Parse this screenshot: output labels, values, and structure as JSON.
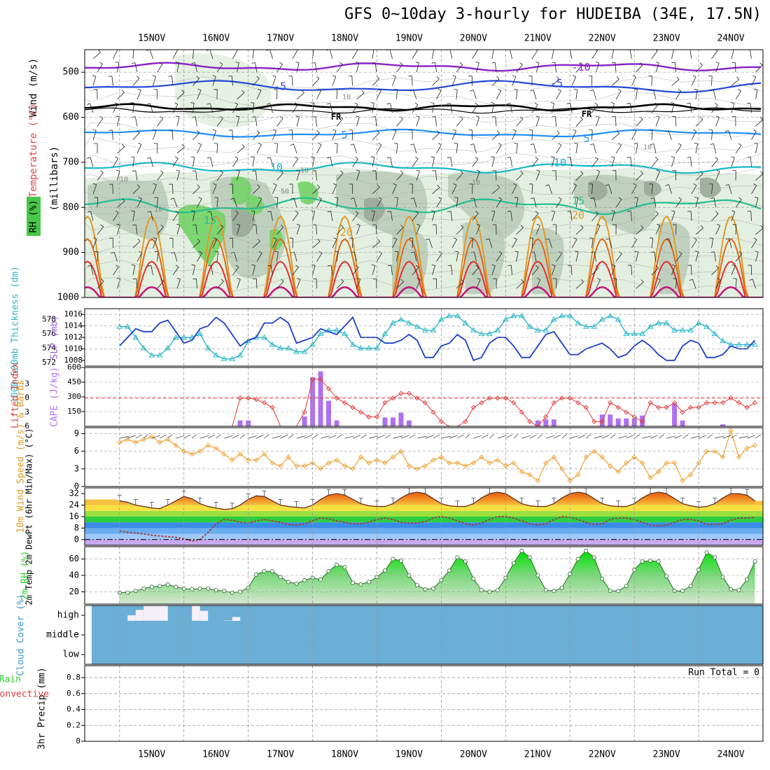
{
  "header": {
    "title": "GFS 0~10day 3-hourly for HUDEIBA (34E, 17.5N)"
  },
  "colors": {
    "rh_light": "#e3efe0",
    "rh_mid": "#b9cbb7",
    "rh_dark": "#9aaa98",
    "rh_green": "#76d46a",
    "iso_neg10": "#8a22c8",
    "iso_neg5": "#2448d8",
    "iso_fr": "#000000",
    "iso_5": "#1e90ff",
    "iso_10": "#18b8c8",
    "iso_15": "#22c090",
    "iso_20": "#e09a28",
    "iso_25": "#e06a1a",
    "iso_30": "#e03030",
    "iso_35": "#c81880",
    "slp": "#1a3ec8",
    "thickness": "#2ab8c8",
    "lifted": "#e03a3a",
    "cape": "#b070f0",
    "wind": "#f0a030",
    "temp_fill": "#e06a1a",
    "dewpt": "#a04040",
    "rh2m": "#2ecc2e",
    "cloud": "#6baed6",
    "cloud_gap": "#f5f0f8"
  },
  "chart_data": [
    {
      "type": "area",
      "name": "upper",
      "xlabel_ticks": [
        "15NOV",
        "16NOV",
        "17NOV",
        "18NOV",
        "19NOV",
        "20NOV",
        "21NOV",
        "22NOV",
        "23NOV",
        "24NOV"
      ],
      "ylabel": "Wind (m/s)",
      "ylabel2": "Temperature (°C)",
      "ylabel3": "RH (%)",
      "ylabel4": "(millibars)",
      "yticks": [
        500,
        600,
        700,
        800,
        900,
        1000
      ],
      "ylim": [
        1000,
        450
      ],
      "isotherm_labels": [
        "-10",
        "-5",
        "-5",
        "FR",
        "FR",
        "5",
        "5",
        "10",
        "10",
        "15",
        "15",
        "20",
        "20"
      ],
      "rh_labels": [
        "10",
        "10",
        "10",
        "10",
        "50",
        "10",
        "10"
      ]
    },
    {
      "type": "line",
      "name": "slp_thickness",
      "ylabel": "SLP (mb)",
      "ylabel2": "1000-500mb Thickness (dm)",
      "slp_ticks": [
        1008,
        1010,
        1012,
        1014,
        1016
      ],
      "thk_ticks": [
        572,
        574,
        576,
        578
      ],
      "x": [
        0,
        3,
        6,
        9,
        12,
        15,
        18,
        21,
        24,
        27,
        30,
        33,
        36,
        39,
        42,
        45,
        48,
        51,
        54,
        57,
        60,
        63,
        66,
        69,
        72,
        75,
        78,
        81,
        84,
        87,
        90,
        93,
        96,
        99,
        102,
        105,
        108,
        111,
        114,
        117,
        120,
        123,
        126,
        129,
        132,
        135,
        138,
        141,
        144,
        147,
        150,
        153,
        156,
        159,
        162,
        165,
        168,
        171,
        174,
        177,
        180,
        183,
        186,
        189,
        192,
        195,
        198,
        201,
        204,
        207,
        210,
        213,
        216,
        219,
        222,
        225,
        228,
        231,
        234,
        237
      ],
      "slp": [
        1010.5,
        1012.0,
        1013.5,
        1013.0,
        1013.0,
        1014.5,
        1015.0,
        1013.0,
        1011.0,
        1011.5,
        1013.5,
        1014.0,
        1015.5,
        1014.5,
        1012.5,
        1010.5,
        1011.5,
        1012.0,
        1014.5,
        1014.5,
        1015.5,
        1014.5,
        1011.0,
        1011.5,
        1012.0,
        1013.5,
        1013.0,
        1012.5,
        1014.0,
        1015.5,
        1012.0,
        1012.0,
        1012.0,
        1011.0,
        1011.0,
        1011.5,
        1012.5,
        1011.5,
        1008.5,
        1008.5,
        1010.5,
        1011.0,
        1012.5,
        1011.5,
        1008.0,
        1008.5,
        1011.0,
        1012.0,
        1012.0,
        1010.5,
        1008.5,
        1008.5,
        1010.5,
        1012.5,
        1013.0,
        1011.0,
        1009.0,
        1009.0,
        1010.0,
        1010.5,
        1011.0,
        1010.0,
        1008.5,
        1009.0,
        1010.5,
        1011.5,
        1010.5,
        1009.0,
        1008.0,
        1008.0,
        1010.5,
        1011.5,
        1011.0,
        1008.5,
        1008.5,
        1009.0,
        1010.5,
        1010.0,
        1010.0,
        1011.5
      ],
      "thickness": [
        577.0,
        577.0,
        575.5,
        574.0,
        573.0,
        573.0,
        574.0,
        575.5,
        575.5,
        575.5,
        576.0,
        574.0,
        573.0,
        572.5,
        572.5,
        573.0,
        575.0,
        575.5,
        575.5,
        574.5,
        574.0,
        574.0,
        573.5,
        573.5,
        574.5,
        576.0,
        576.5,
        576.5,
        576.0,
        574.5,
        574.0,
        574.0,
        574.0,
        576.0,
        577.5,
        578.0,
        577.5,
        577.0,
        576.5,
        576.5,
        578.0,
        578.5,
        578.5,
        577.5,
        576.5,
        576.0,
        576.0,
        576.5,
        578.0,
        578.5,
        578.5,
        577.0,
        576.5,
        576.5,
        578.0,
        578.5,
        578.5,
        577.5,
        577.0,
        577.0,
        578.0,
        578.5,
        578.0,
        576.0,
        576.0,
        576.0,
        577.0,
        577.5,
        577.5,
        576.5,
        576.5,
        576.5,
        577.5,
        577.0,
        576.0,
        575.0,
        574.5,
        574.5,
        574.5,
        574.5
      ]
    },
    {
      "type": "bar",
      "name": "cape_lifted",
      "ylabel": "Lifted Index",
      "ylabel2": "CAPE (J/kg)",
      "li_ticks": [
        "-3",
        "0",
        "3",
        "6"
      ],
      "cape_ticks": [
        150,
        300,
        450,
        600
      ],
      "x": [
        0,
        3,
        6,
        9,
        12,
        15,
        18,
        21,
        24,
        27,
        30,
        33,
        36,
        39,
        42,
        45,
        48,
        51,
        54,
        57,
        60,
        63,
        66,
        69,
        72,
        75,
        78,
        81,
        84,
        87,
        90,
        93,
        96,
        99,
        102,
        105,
        108,
        111,
        114,
        117,
        120,
        123,
        126,
        129,
        132,
        135,
        138,
        141,
        144,
        147,
        150,
        153,
        156,
        159,
        162,
        165,
        168,
        171,
        174,
        177,
        180,
        183,
        186,
        189,
        192,
        195,
        198,
        201,
        204,
        207,
        210,
        213,
        216,
        219,
        222,
        225,
        228,
        231,
        234,
        237
      ],
      "cape": [
        0,
        0,
        0,
        0,
        0,
        0,
        0,
        0,
        0,
        0,
        0,
        0,
        0,
        0,
        0,
        60,
        60,
        0,
        0,
        0,
        0,
        0,
        0,
        100,
        500,
        560,
        260,
        60,
        0,
        0,
        0,
        0,
        0,
        90,
        90,
        140,
        60,
        0,
        0,
        0,
        0,
        0,
        0,
        0,
        0,
        0,
        0,
        0,
        0,
        0,
        0,
        0,
        60,
        70,
        70,
        0,
        0,
        0,
        0,
        0,
        120,
        120,
        80,
        80,
        80,
        110,
        0,
        0,
        0,
        230,
        60,
        0,
        0,
        0,
        0,
        20,
        0,
        0,
        0,
        0
      ],
      "lifted": [
        6,
        6,
        6,
        6,
        6,
        6,
        6,
        6,
        6,
        6,
        6,
        6,
        6,
        6,
        6,
        0,
        0,
        0.3,
        1,
        2,
        6,
        6,
        6,
        3,
        -4,
        -4,
        -2,
        0,
        1,
        2,
        3,
        4,
        4,
        1,
        0,
        -1,
        -1,
        0,
        1,
        3,
        5,
        6,
        6,
        5,
        2,
        1,
        0,
        0,
        0,
        1,
        3,
        5,
        6,
        4,
        1,
        0,
        0,
        1,
        2,
        5,
        5,
        1,
        2,
        3,
        4,
        5,
        1,
        2,
        2,
        1,
        3,
        2,
        2,
        1,
        1,
        1,
        0,
        1,
        2,
        1
      ],
      "li_hline": 0
    },
    {
      "type": "line",
      "name": "wind10m",
      "ylabel": "10m Wind Speed (m/s) & Barbs",
      "yticks": [
        0,
        3,
        6,
        9
      ],
      "ylim": [
        0,
        10
      ],
      "x": [
        0,
        3,
        6,
        9,
        12,
        15,
        18,
        21,
        24,
        27,
        30,
        33,
        36,
        39,
        42,
        45,
        48,
        51,
        54,
        57,
        60,
        63,
        66,
        69,
        72,
        75,
        78,
        81,
        84,
        87,
        90,
        93,
        96,
        99,
        102,
        105,
        108,
        111,
        114,
        117,
        120,
        123,
        126,
        129,
        132,
        135,
        138,
        141,
        144,
        147,
        150,
        153,
        156,
        159,
        162,
        165,
        168,
        171,
        174,
        177,
        180,
        183,
        186,
        189,
        192,
        195,
        198,
        201,
        204,
        207,
        210,
        213,
        216,
        219,
        222,
        225,
        228,
        231,
        234,
        237
      ],
      "speed": [
        7.5,
        8,
        7.5,
        8,
        8.5,
        7.5,
        8,
        7,
        6,
        5.5,
        6,
        7,
        6.5,
        5.5,
        4.5,
        5.5,
        4.5,
        4.5,
        5.5,
        4,
        3.5,
        5,
        3.5,
        3.5,
        4,
        3,
        4,
        4.5,
        3.5,
        3,
        5,
        4,
        4.5,
        4,
        5,
        6,
        3.5,
        3,
        3.5,
        4.5,
        5,
        4,
        4,
        3.5,
        4,
        5,
        4,
        4.5,
        3.5,
        4,
        2.5,
        2,
        1,
        4,
        5,
        3,
        1,
        2,
        5,
        6,
        5,
        3.5,
        2.5,
        4,
        5,
        4,
        1.5,
        2.5,
        4,
        4,
        1,
        2,
        4,
        6,
        6,
        5,
        9.5,
        5,
        6.5,
        7
      ]
    },
    {
      "type": "area",
      "name": "temp2m",
      "ylabel": "2m Temp 2m DewPt (6hr Min/Max) (°C)",
      "yticks": [
        0,
        8,
        16,
        24,
        32
      ],
      "ylim": [
        -4,
        36
      ],
      "x": [
        0,
        3,
        6,
        9,
        12,
        15,
        18,
        21,
        24,
        27,
        30,
        33,
        36,
        39,
        42,
        45,
        48,
        51,
        54,
        57,
        60,
        63,
        66,
        69,
        72,
        75,
        78,
        81,
        84,
        87,
        90,
        93,
        96,
        99,
        102,
        105,
        108,
        111,
        114,
        117,
        120,
        123,
        126,
        129,
        132,
        135,
        138,
        141,
        144,
        147,
        150,
        153,
        156,
        159,
        162,
        165,
        168,
        171,
        174,
        177,
        180,
        183,
        186,
        189,
        192,
        195,
        198,
        201,
        204,
        207,
        210,
        213,
        216,
        219,
        222,
        225,
        228,
        231,
        234,
        237
      ],
      "temp": [
        27,
        26,
        24,
        23,
        22,
        21.5,
        24,
        27,
        30,
        28.5,
        25,
        23,
        22,
        21,
        21.5,
        24,
        28,
        30.5,
        30,
        27,
        24,
        23,
        22.5,
        22,
        24,
        28,
        31,
        32,
        31,
        28,
        25,
        23.5,
        23,
        23,
        25,
        29,
        32,
        33,
        32,
        28.5,
        25,
        23.5,
        23,
        23,
        25,
        29,
        32,
        33,
        32,
        28.5,
        25,
        23.5,
        23,
        23,
        25,
        29,
        32,
        33,
        32,
        28.5,
        25,
        23.5,
        23,
        23,
        25,
        29,
        32,
        33,
        32,
        28.5,
        25,
        23.5,
        22.5,
        23,
        25,
        29,
        32,
        32,
        31,
        27
      ],
      "dewpt": [
        6,
        5,
        4.5,
        4,
        3,
        2.5,
        2,
        1.5,
        0.5,
        -1,
        0,
        5,
        11,
        14,
        13.5,
        12,
        11.5,
        13,
        14,
        13,
        12,
        10.5,
        10,
        11,
        13,
        15,
        14.5,
        13,
        12,
        11,
        11,
        12,
        14,
        15,
        14,
        12,
        11.5,
        11.5,
        12.5,
        15,
        16,
        15,
        13,
        11,
        10,
        11.5,
        14,
        16,
        16,
        15,
        13,
        11,
        10,
        11,
        14,
        16,
        15.5,
        14,
        12,
        10.5,
        11,
        14,
        15,
        15,
        14,
        12,
        10,
        9.5,
        10,
        12,
        14,
        14,
        13,
        10.5,
        10.5,
        11,
        13.5,
        15,
        15,
        15.5
      ]
    },
    {
      "type": "area",
      "name": "rh2m",
      "ylabel": "2m RH (%)",
      "yticks": [
        20,
        40,
        60
      ],
      "ylim": [
        5,
        75
      ],
      "x": [
        0,
        3,
        6,
        9,
        12,
        15,
        18,
        21,
        24,
        27,
        30,
        33,
        36,
        39,
        42,
        45,
        48,
        51,
        54,
        57,
        60,
        63,
        66,
        69,
        72,
        75,
        78,
        81,
        84,
        87,
        90,
        93,
        96,
        99,
        102,
        105,
        108,
        111,
        114,
        117,
        120,
        123,
        126,
        129,
        132,
        135,
        138,
        141,
        144,
        147,
        150,
        153,
        156,
        159,
        162,
        165,
        168,
        171,
        174,
        177,
        180,
        183,
        186,
        189,
        192,
        195,
        198,
        201,
        204,
        207,
        210,
        213,
        216,
        219,
        222,
        225,
        228,
        231,
        234,
        237
      ],
      "rh": [
        19,
        19,
        21,
        24,
        26,
        27,
        29,
        26,
        24,
        23,
        24,
        24,
        22,
        21,
        19,
        20,
        25,
        41,
        45,
        45,
        38,
        32,
        30,
        34,
        37,
        35,
        45,
        53,
        50,
        31,
        29,
        32,
        38,
        46,
        60,
        58,
        40,
        28,
        23,
        24,
        34,
        46,
        62,
        57,
        36,
        22,
        20,
        22,
        37,
        55,
        70,
        62,
        40,
        22,
        21,
        25,
        42,
        60,
        70,
        62,
        36,
        21,
        21,
        27,
        47,
        57,
        58,
        57,
        39,
        21,
        21,
        27,
        47,
        68,
        62,
        38,
        23,
        22,
        35,
        57
      ],
      "rh_max_ref": 70
    },
    {
      "type": "heatmap",
      "name": "cloud",
      "ylabel": "Cloud Cover (%)",
      "ylevels": [
        "high",
        "middle",
        "low"
      ],
      "high_gaps": [
        {
          "x0": 0,
          "x1": 3,
          "top": 1.0
        },
        {
          "x0": 3,
          "x1": 6,
          "top": 0.55
        },
        {
          "x0": 6,
          "x1": 9,
          "top": 0.25
        },
        {
          "x0": 9,
          "x1": 18,
          "top": 0.0
        },
        {
          "x0": 27,
          "x1": 30,
          "top": 0.0
        },
        {
          "x0": 30,
          "x1": 33,
          "top": 0.3
        },
        {
          "x0": 39,
          "x1": 42,
          "top": 0.85
        },
        {
          "x0": 42,
          "x1": 45,
          "top": 0.65
        },
        {
          "x0": 219,
          "x1": 221,
          "top": 0.88
        }
      ]
    },
    {
      "type": "bar",
      "name": "precip",
      "ylabel": "3hr Precip (mm)",
      "ylabel_a": "Total / Rain",
      "ylabel_b": "Convective",
      "yticks": [
        "0",
        "0.2",
        "0.4",
        "0.6",
        "0.8"
      ],
      "ylim": [
        0,
        0.95
      ],
      "run_total": "Run Total = 0",
      "values": []
    }
  ]
}
